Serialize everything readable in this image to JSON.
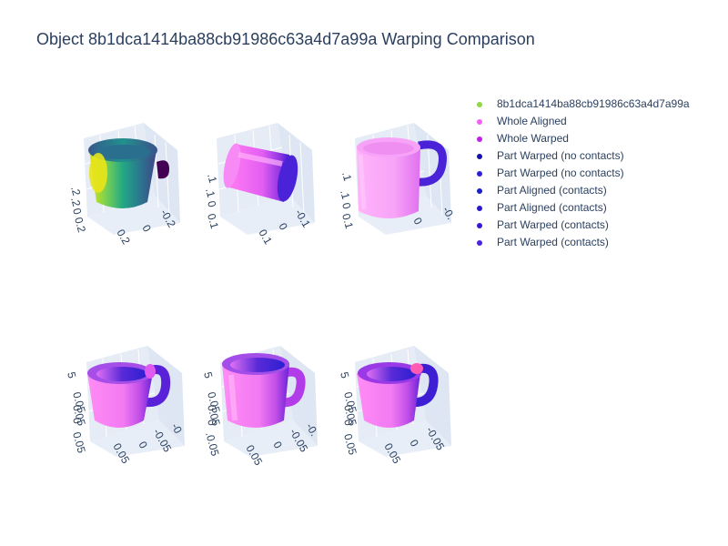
{
  "title": "Object 8b1dca1414ba88cb91986c63a4d7a99a Warping Comparison",
  "legend": [
    {
      "label": "8b1dca1414ba88cb91986c63a4d7a99a",
      "color": "#8fd744"
    },
    {
      "label": "Whole Aligned",
      "color": "#f261f2"
    },
    {
      "label": "Whole Warped",
      "color": "#c11fe8"
    },
    {
      "label": "Part Warped (no contacts)",
      "color": "#1412a8"
    },
    {
      "label": "Part Warped (no contacts)",
      "color": "#2d1fd6"
    },
    {
      "label": "Part Aligned (contacts)",
      "color": "#1a1fc8"
    },
    {
      "label": "Part Aligned (contacts)",
      "color": "#2a18d0"
    },
    {
      "label": "Part Warped (contacts)",
      "color": "#3b14d8"
    },
    {
      "label": "Part Warped (contacts)",
      "color": "#4a22e0"
    }
  ],
  "chart_data": [
    {
      "type": "scatter3d",
      "subject": "original point cloud (viridis)",
      "shape": "mug",
      "axis_ticks": {
        "left": [
          ".2",
          ".2",
          "0",
          "0.2"
        ],
        "front": [
          "0.2",
          "0",
          "-0.2"
        ]
      }
    },
    {
      "type": "scatter3d",
      "subject": "aligned mug rotated",
      "shape": "cylinder",
      "axis_ticks": {
        "left": [
          ".1",
          ".1",
          "0",
          "0.1"
        ],
        "front": [
          "0.1",
          "0",
          "-0.1"
        ]
      }
    },
    {
      "type": "scatter3d",
      "subject": "warped mug",
      "shape": "mug",
      "axis_ticks": {
        "left": [
          ".1",
          ".1",
          "0",
          "0.1"
        ],
        "front": [
          "0",
          "-0."
        ]
      }
    },
    {
      "type": "scatter3d",
      "subject": "part comparison 1",
      "shape": "mug",
      "axis_ticks": {
        "left": [
          "5",
          "0.05",
          "0.05",
          "0",
          "0.05"
        ],
        "front": [
          "0.05",
          "0",
          "-0.05",
          "-0"
        ]
      }
    },
    {
      "type": "scatter3d",
      "subject": "part comparison 2",
      "shape": "mug",
      "axis_ticks": {
        "left": [
          "5",
          "0.05",
          "0.05",
          "0",
          ".0.05"
        ],
        "front": [
          "0.05",
          "0",
          "-0.05",
          "-0."
        ]
      }
    },
    {
      "type": "scatter3d",
      "subject": "part comparison 3",
      "shape": "mug",
      "axis_ticks": {
        "left": [
          "5",
          "0.05",
          "0.05",
          "0",
          "0.05"
        ],
        "front": [
          "0.05",
          "0",
          "-0.05"
        ]
      }
    }
  ]
}
